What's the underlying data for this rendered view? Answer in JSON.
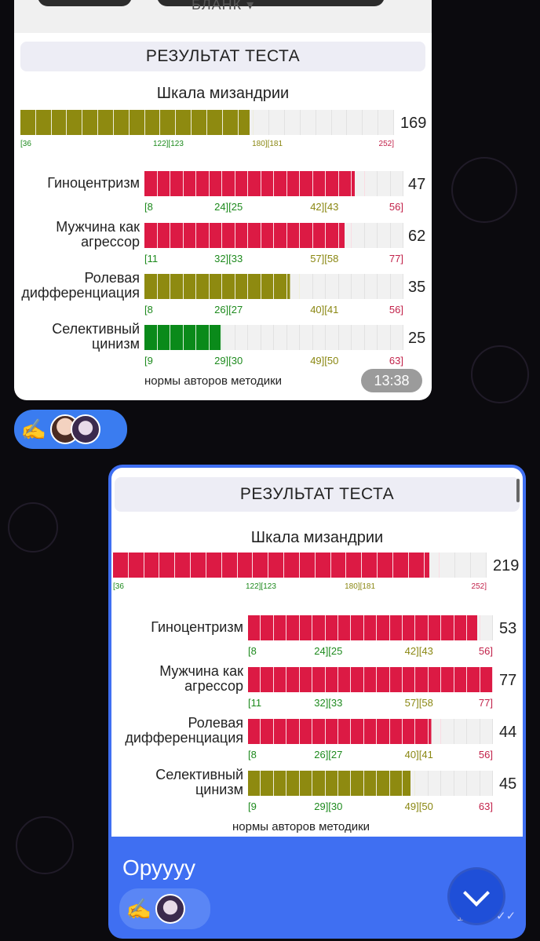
{
  "colors": {
    "green": "#0a8a1a",
    "olive": "#8e8a10",
    "red": "#dc1a44",
    "empty": "#f1f1f1",
    "tick_green": "#1d8a1d",
    "tick_olive": "#8a8712",
    "tick_red": "#c2224a"
  },
  "msg1": {
    "top_cut_label": "БЛАНК ▾",
    "result_title": "РЕЗУЛЬТАТ ТЕСТА",
    "scale_title": "Шкала мизандрии",
    "main_scale": {
      "value": "169",
      "score": 169,
      "min": 36,
      "max": 252,
      "color": "olive",
      "ticks": [
        "[36",
        "122][123",
        "180][181",
        "252]"
      ]
    },
    "rows": [
      {
        "label": "Гиноцентризм",
        "value": "47",
        "score": 47,
        "min": 8,
        "max": 56,
        "color": "red",
        "ticks": [
          "[8",
          "24][25",
          "42][43",
          "56]"
        ]
      },
      {
        "label": "Мужчина как агрессор",
        "value": "62",
        "score": 62,
        "min": 11,
        "max": 77,
        "color": "red",
        "ticks": [
          "[11",
          "32][33",
          "57][58",
          "77]"
        ]
      },
      {
        "label": "Ролевая дифференциация",
        "value": "35",
        "score": 35,
        "min": 8,
        "max": 56,
        "color": "olive",
        "ticks": [
          "[8",
          "26][27",
          "40][41",
          "56]"
        ]
      },
      {
        "label": "Селективный цинизм",
        "value": "25",
        "score": 25,
        "min": 9,
        "max": 63,
        "color": "green",
        "ticks": [
          "[9",
          "29][30",
          "49][50",
          "63]"
        ]
      }
    ],
    "norms_text": "нормы авторов методики",
    "time": "13:38"
  },
  "msg2": {
    "result_title": "РЕЗУЛЬТАТ ТЕСТА",
    "scale_title": "Шкала мизандрии",
    "main_scale": {
      "value": "219",
      "score": 219,
      "min": 36,
      "max": 252,
      "color": "red",
      "ticks": [
        "[36",
        "122][123",
        "180][181",
        "252]"
      ]
    },
    "rows": [
      {
        "label": "Гиноцентризм",
        "value": "53",
        "score": 53,
        "min": 8,
        "max": 56,
        "color": "red",
        "ticks": [
          "[8",
          "24][25",
          "42][43",
          "56]"
        ]
      },
      {
        "label": "Мужчина как агрессор",
        "value": "77",
        "score": 77,
        "min": 11,
        "max": 77,
        "color": "red",
        "ticks": [
          "[11",
          "32][33",
          "57][58",
          "77]"
        ]
      },
      {
        "label": "Ролевая дифференциация",
        "value": "44",
        "score": 44,
        "min": 8,
        "max": 56,
        "color": "red",
        "ticks": [
          "[8",
          "26][27",
          "40][41",
          "56]"
        ]
      },
      {
        "label": "Селективный цинизм",
        "value": "45",
        "score": 45,
        "min": 9,
        "max": 63,
        "color": "olive",
        "ticks": [
          "[9",
          "29][30",
          "49][50",
          "63]"
        ]
      }
    ],
    "norms_text": "нормы авторов методики",
    "text": "Оруууу",
    "time": "14:13"
  }
}
